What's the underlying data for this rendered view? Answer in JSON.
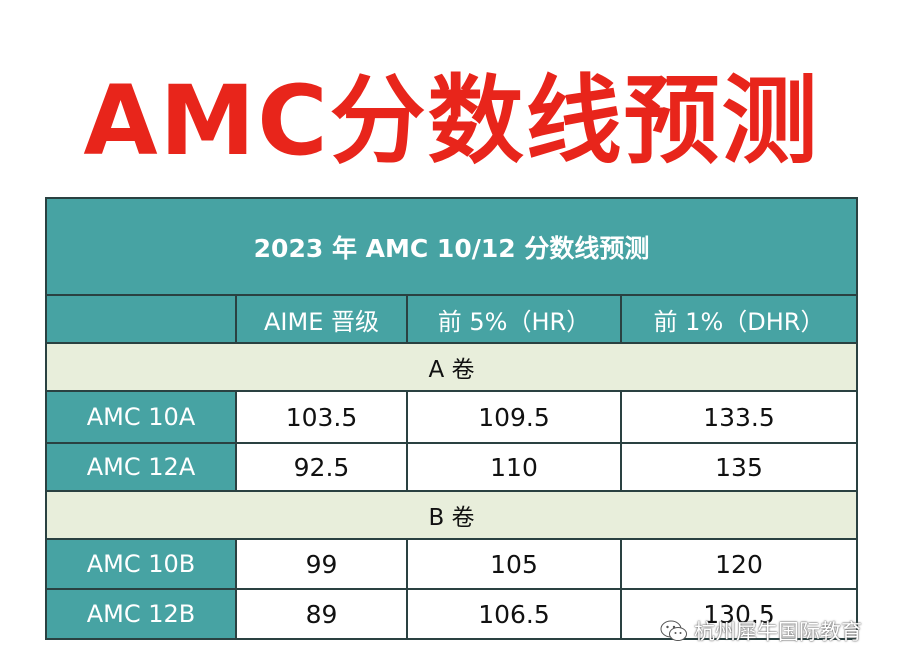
{
  "headline": "AMC分数线预测",
  "table": {
    "title": "2023 年 AMC 10/12 分数线预测",
    "columns": [
      "",
      "AIME 晋级",
      "前 5%（HR）",
      "前 1%（DHR）"
    ],
    "sections": [
      {
        "label": "A 卷",
        "rows": [
          {
            "name": "AMC 10A",
            "values": [
              "103.5",
              "109.5",
              "133.5"
            ]
          },
          {
            "name": "AMC 12A",
            "values": [
              "92.5",
              "110",
              "135"
            ]
          }
        ]
      },
      {
        "label": "B 卷",
        "rows": [
          {
            "name": "AMC 10B",
            "values": [
              "99",
              "105",
              "120"
            ]
          },
          {
            "name": "AMC 12B",
            "values": [
              "89",
              "106.5",
              "130.5"
            ]
          }
        ]
      }
    ]
  },
  "watermark": {
    "icon": "wechat-icon",
    "text": "杭州犀牛国际教育"
  },
  "colors": {
    "headline": "#e8251b",
    "header_teal": "#47a3a3",
    "section_band": "#e8eedb",
    "border": "#2a4141"
  }
}
